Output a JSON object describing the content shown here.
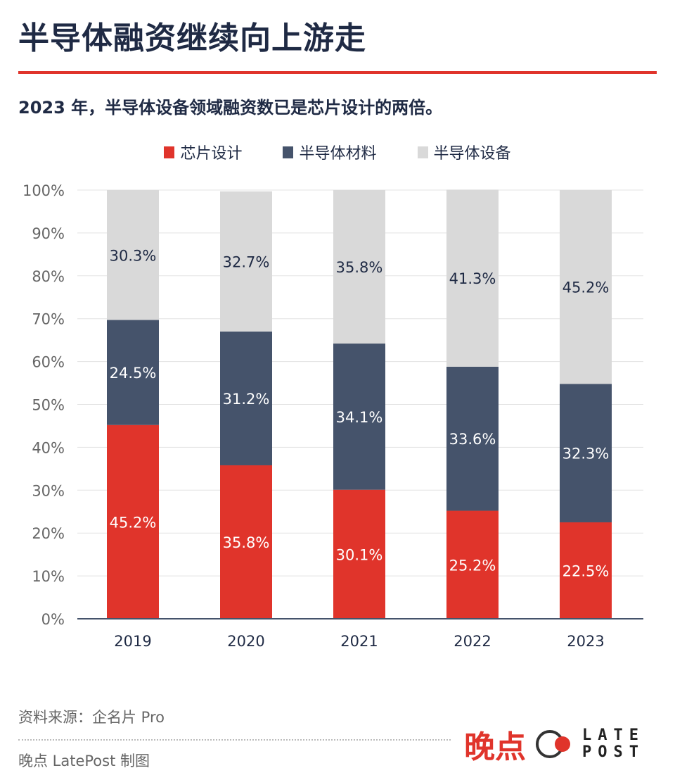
{
  "title": "半导体融资继续向上游走",
  "subtitle": "2023 年，半导体设备领域融资数已是芯片设计的两倍。",
  "footer": {
    "source": "资料来源：企名片 Pro",
    "maker": "晚点 LatePost 制图",
    "logo_cn": "晚点",
    "logo_en_line1": "LATE",
    "logo_en_line2": "POST"
  },
  "chart_data": {
    "type": "bar",
    "stacked": true,
    "categories": [
      "2019",
      "2020",
      "2021",
      "2022",
      "2023"
    ],
    "series": [
      {
        "name": "芯片设计",
        "color": "#e0342b",
        "label_color": "#ffffff",
        "values": [
          45.2,
          35.8,
          30.1,
          25.2,
          22.5
        ]
      },
      {
        "name": "半导体材料",
        "color": "#45536b",
        "label_color": "#ffffff",
        "values": [
          24.5,
          31.2,
          34.1,
          33.6,
          32.3
        ]
      },
      {
        "name": "半导体设备",
        "color": "#d9d9d9",
        "label_color": "#1f2a44",
        "values": [
          30.3,
          32.7,
          35.8,
          41.3,
          45.2
        ]
      }
    ],
    "yticks": [
      "0%",
      "10%",
      "20%",
      "30%",
      "40%",
      "50%",
      "60%",
      "70%",
      "80%",
      "90%",
      "100%"
    ],
    "ylim": [
      0,
      100
    ],
    "grid": true,
    "legend": "top-center"
  }
}
